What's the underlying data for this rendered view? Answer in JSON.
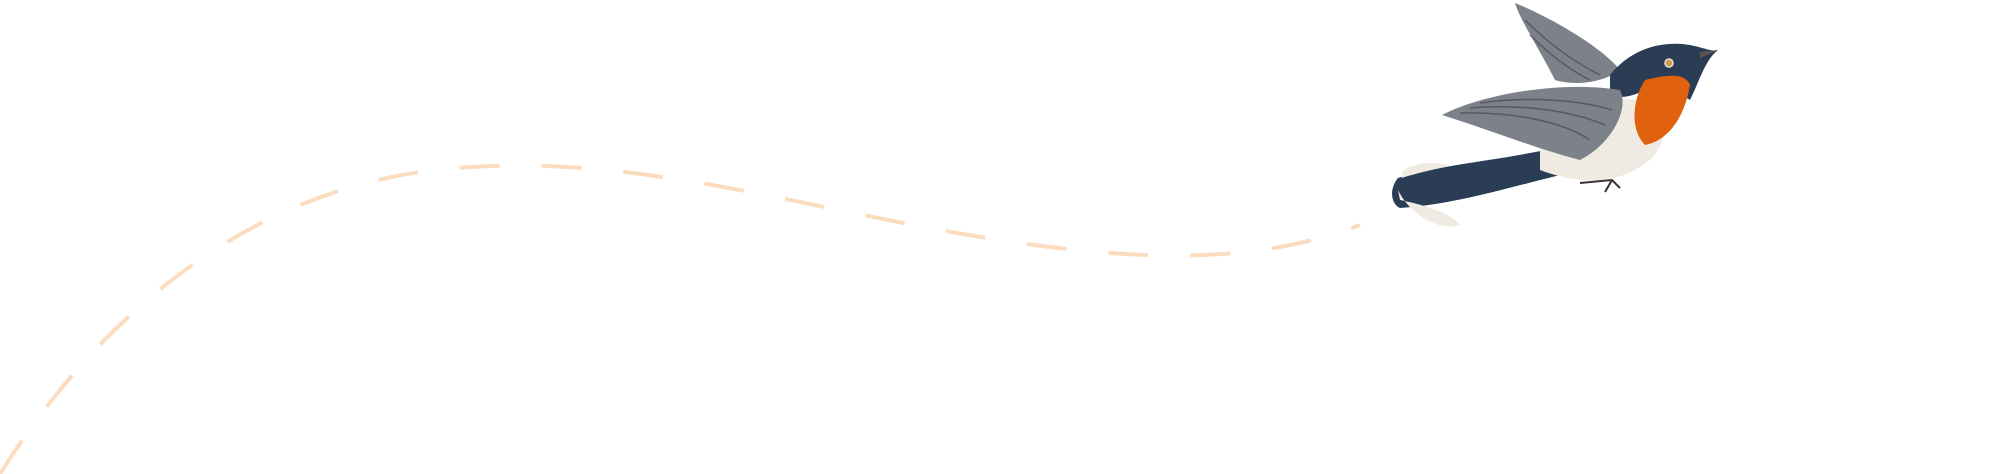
{
  "illustration": {
    "subject": "bird-in-flight",
    "colors": {
      "background": "#ffffff",
      "flight_path": "#fcdcbf",
      "bird_back": "#2a3d55",
      "bird_throat": "#e0620f",
      "bird_belly": "#efebe2",
      "bird_wing": "#7d8189"
    }
  }
}
